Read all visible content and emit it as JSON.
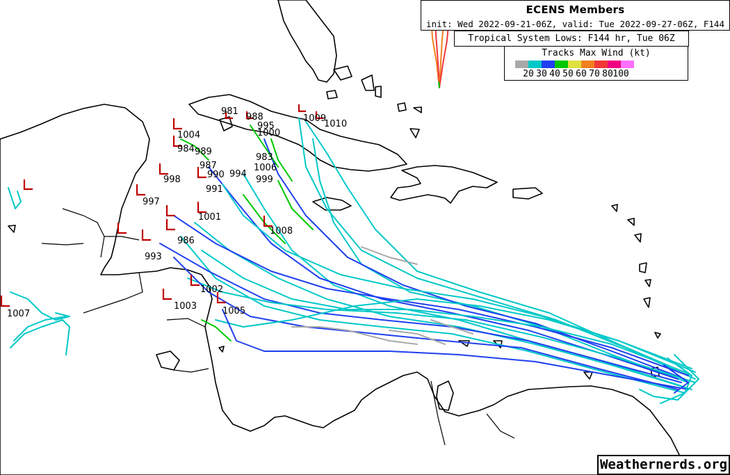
{
  "header": {
    "title": "ECENS Members",
    "subtitle": "init: Wed 2022-09-21-06Z, valid: Tue 2022-09-27-06Z, F144 hr",
    "lows_label": "Tropical System Lows: F144 hr, Tue 06Z"
  },
  "legend": {
    "title": "Tracks Max Wind (kt)",
    "colors": [
      "#a8a8a8",
      "#00c8c8",
      "#2040f0",
      "#00c800",
      "#e0e040",
      "#f08020",
      "#f03838",
      "#f00080",
      "#ff70ff"
    ],
    "ticks": [
      "20",
      "30",
      "40",
      "50",
      "60",
      "70",
      "80",
      "100"
    ]
  },
  "pressure_labels": [
    "981",
    "988",
    "995",
    "1004",
    "1000",
    "1010",
    "984",
    "1009",
    "989",
    "1001",
    "987",
    "1008",
    "997",
    "1005",
    "990",
    "983",
    "986",
    "994",
    "999",
    "998",
    "1003",
    "991",
    "1002",
    "1007",
    "1006",
    "993"
  ],
  "watermark": "Weathernerds.org"
}
